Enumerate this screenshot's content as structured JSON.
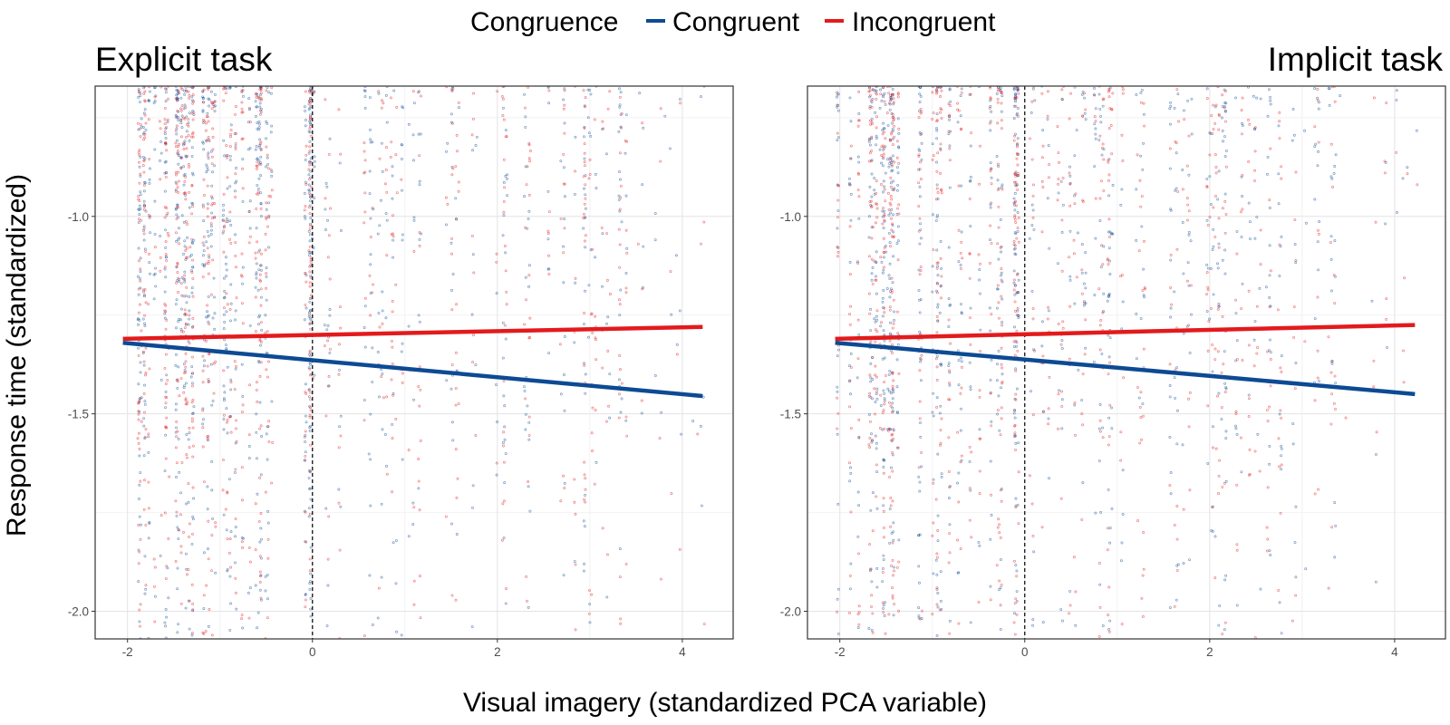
{
  "legend": {
    "title": "Congruence",
    "items": [
      {
        "label": "Congruent",
        "color": "#0d4a94"
      },
      {
        "label": "Incongruent",
        "color": "#e31a1c"
      }
    ]
  },
  "xlabel": "Visual imagery (standardized PCA variable)",
  "ylabel": "Response time (standardized)",
  "chart_data": [
    {
      "type": "scatter",
      "title": "Explicit task",
      "title_align": "left",
      "xlim": [
        -2.35,
        4.55
      ],
      "ylim": [
        -2.07,
        -0.67
      ],
      "x_ticks": [
        -2,
        0,
        2,
        4
      ],
      "x_tick_labels": [
        "-2",
        "0",
        "2",
        "4"
      ],
      "y_ticks": [
        -1.0,
        -1.5,
        -2.0
      ],
      "y_tick_labels": [
        "-1.0",
        "-1.5",
        "-2.0"
      ],
      "grid": true,
      "reference_line": {
        "x": 0,
        "style": "dashed"
      },
      "series": [
        {
          "name": "Congruent",
          "color": "#0d4a94",
          "fit_line": {
            "x": [
              -2.05,
              4.22
            ],
            "y": [
              -1.32,
              -1.455
            ]
          }
        },
        {
          "name": "Incongruent",
          "color": "#e31a1c",
          "fit_line": {
            "x": [
              -2.05,
              4.22
            ],
            "y": [
              -1.31,
              -1.28
            ]
          }
        }
      ]
    },
    {
      "type": "scatter",
      "title": "Implicit task",
      "title_align": "right",
      "xlim": [
        -2.35,
        4.55
      ],
      "ylim": [
        -2.07,
        -0.67
      ],
      "x_ticks": [
        -2,
        0,
        2,
        4
      ],
      "x_tick_labels": [
        "-2",
        "0",
        "2",
        "4"
      ],
      "y_ticks": [
        -1.0,
        -1.5,
        -2.0
      ],
      "y_tick_labels": [
        "-1.0",
        "-1.5",
        "-2.0"
      ],
      "grid": true,
      "reference_line": {
        "x": 0,
        "style": "dashed"
      },
      "series": [
        {
          "name": "Congruent",
          "color": "#0d4a94",
          "fit_line": {
            "x": [
              -2.05,
              4.22
            ],
            "y": [
              -1.32,
              -1.45
            ]
          }
        },
        {
          "name": "Incongruent",
          "color": "#e31a1c",
          "fit_line": {
            "x": [
              -2.05,
              4.22
            ],
            "y": [
              -1.31,
              -1.275
            ]
          }
        }
      ]
    }
  ]
}
